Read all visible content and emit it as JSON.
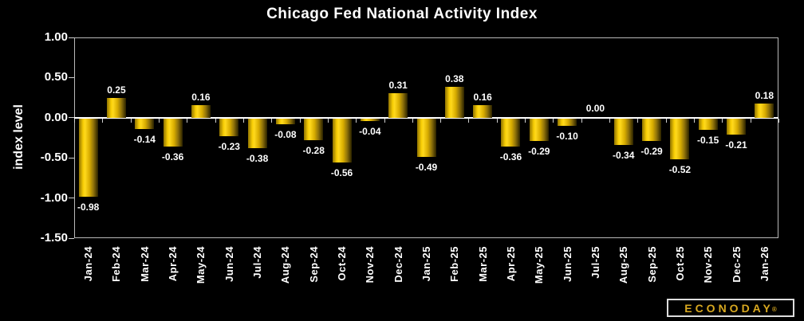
{
  "chart_data": {
    "type": "bar",
    "title": "Chicago Fed National Activity Index",
    "ylabel": "index level",
    "xlabel": "",
    "ylim": [
      -1.5,
      1.0
    ],
    "yticks": [
      1.0,
      0.5,
      0.0,
      -0.5,
      -1.0,
      -1.5
    ],
    "ytick_labels": [
      "1.00",
      "0.50",
      "0.00",
      "-0.50",
      "-1.00",
      "-1.50"
    ],
    "grid": false,
    "legend_position": "none",
    "background_color": "#000000",
    "text_color": "#ffffff",
    "bar_color": "#ffd91c",
    "categories": [
      "Jan-24",
      "Feb-24",
      "Mar-24",
      "Apr-24",
      "May-24",
      "Jun-24",
      "Jul-24",
      "Aug-24",
      "Sep-24",
      "Oct-24",
      "Nov-24",
      "Dec-24",
      "Jan-25",
      "Feb-25",
      "Mar-25",
      "Apr-25",
      "May-25",
      "Jun-25",
      "Jul-25",
      "Aug-25",
      "Sep-25",
      "Oct-25",
      "Nov-25",
      "Dec-25",
      "Jan-26"
    ],
    "values": [
      -0.98,
      0.25,
      -0.14,
      -0.36,
      0.16,
      -0.23,
      -0.38,
      -0.08,
      -0.28,
      -0.56,
      -0.04,
      0.31,
      -0.49,
      0.38,
      0.16,
      -0.36,
      -0.29,
      -0.1,
      0.0,
      -0.34,
      -0.29,
      -0.52,
      -0.15,
      -0.21,
      0.18
    ],
    "value_labels": [
      "-0.98",
      "0.25",
      "-0.14",
      "-0.36",
      "0.16",
      "-0.23",
      "-0.38",
      "-0.08",
      "-0.28",
      "-0.56",
      "-0.04",
      "0.31",
      "-0.49",
      "0.38",
      "0.16",
      "-0.36",
      "-0.29",
      "-0.10",
      "0.00",
      "-0.34",
      "-0.29",
      "-0.52",
      "-0.15",
      "-0.21",
      "0.18"
    ]
  },
  "branding": {
    "logo_text": "ECONODAY",
    "registered_mark": "®"
  }
}
